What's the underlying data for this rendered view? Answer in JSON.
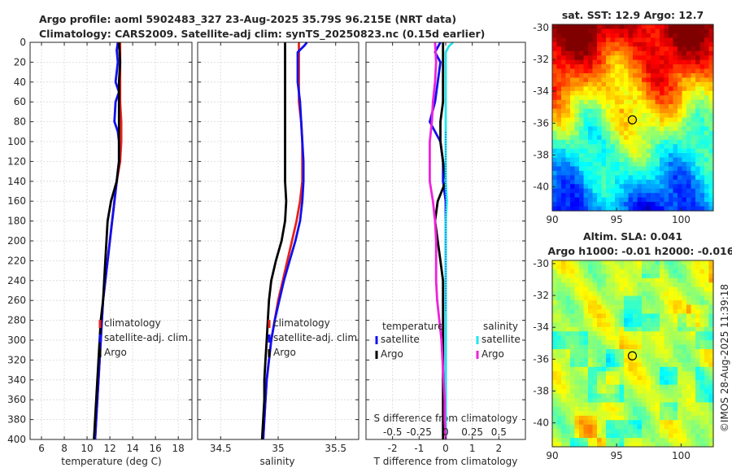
{
  "header": {
    "line1": "Argo profile: aoml 5902483_327 23-Aug-2025 35.79S 96.215E (NRT data)",
    "line2": "Climatology: CARS2009. Satellite-adj clim: synTS_20250823.nc (0.15d earlier)"
  },
  "credit": "©IMOS 28-Aug-2025 11:39:18",
  "colors": {
    "climatology": "#e8211a",
    "satellite": "#1010ee",
    "argo": "#000000",
    "cyan": "#22e5ea",
    "magenta": "#ee22dd"
  },
  "depth_axis": {
    "ticks": [
      0,
      20,
      40,
      60,
      80,
      100,
      120,
      140,
      160,
      180,
      200,
      220,
      240,
      260,
      280,
      300,
      320,
      340,
      360,
      380,
      400
    ],
    "range": [
      0,
      400
    ]
  },
  "chart_data": [
    {
      "type": "line",
      "id": "temp",
      "xlabel": "temperature (deg C)",
      "xlim": [
        5,
        19.2
      ],
      "xticks": [
        6,
        8,
        10,
        12,
        14,
        16,
        18
      ],
      "xticklabels": [
        "6",
        "8",
        "10",
        "12",
        "14",
        "16",
        "18"
      ],
      "legend": [
        "climatology",
        "satellite-adj. clim",
        "Argo"
      ],
      "series": [
        {
          "name": "climatology",
          "color": "#e8211a",
          "depth": [
            0,
            20,
            40,
            60,
            80,
            100,
            120,
            140,
            160,
            180,
            200,
            220,
            240,
            260,
            280,
            300,
            320,
            340,
            360,
            380,
            400
          ],
          "values": [
            12.9,
            12.9,
            12.9,
            12.9,
            13.0,
            13.0,
            12.9,
            12.6,
            12.4,
            12.2,
            12.0,
            11.8,
            11.6,
            11.4,
            11.3,
            11.2,
            11.1,
            11.0,
            10.9,
            10.8,
            10.7
          ]
        },
        {
          "name": "satellite-adj. clim",
          "color": "#1010ee",
          "depth": [
            0,
            8,
            20,
            40,
            50,
            60,
            80,
            90,
            100,
            120,
            140,
            160,
            180,
            200,
            220,
            240,
            260,
            280,
            300,
            320,
            340,
            360,
            380,
            400
          ],
          "values": [
            12.7,
            12.6,
            12.7,
            12.5,
            12.8,
            12.5,
            12.4,
            12.7,
            12.8,
            12.8,
            12.6,
            12.4,
            12.2,
            12.0,
            11.8,
            11.6,
            11.4,
            11.3,
            11.2,
            11.1,
            11.0,
            10.9,
            10.8,
            10.7
          ]
        },
        {
          "name": "Argo",
          "color": "#000000",
          "depth": [
            0,
            20,
            40,
            60,
            80,
            100,
            120,
            140,
            160,
            180,
            200,
            220,
            240,
            260,
            280,
            300,
            320,
            340,
            360,
            380,
            400
          ],
          "values": [
            12.8,
            12.9,
            12.8,
            12.8,
            12.8,
            12.8,
            12.8,
            12.6,
            12.1,
            11.8,
            11.7,
            11.6,
            11.5,
            11.4,
            11.2,
            11.1,
            11.0,
            10.9,
            10.8,
            10.7,
            10.6
          ]
        }
      ]
    },
    {
      "type": "line",
      "id": "salt",
      "xlabel": "salinity",
      "xlim": [
        34.3,
        35.7
      ],
      "xticks": [
        34.5,
        35,
        35.5
      ],
      "xticklabels": [
        "34.5",
        "35",
        "35.5"
      ],
      "legend": [
        "climatology",
        "satellite-adj. clim",
        "Argo"
      ],
      "series": [
        {
          "name": "climatology",
          "color": "#e8211a",
          "depth": [
            0,
            60,
            80,
            100,
            120,
            140,
            160,
            180,
            200,
            220,
            240,
            260,
            280,
            300,
            320,
            340,
            360,
            380,
            400
          ],
          "values": [
            35.18,
            35.18,
            35.2,
            35.21,
            35.21,
            35.21,
            35.19,
            35.16,
            35.12,
            35.08,
            35.04,
            35.0,
            34.97,
            34.94,
            34.92,
            34.9,
            34.89,
            34.88,
            34.87
          ]
        },
        {
          "name": "satellite-adj. clim",
          "color": "#1010ee",
          "depth": [
            0,
            3,
            10,
            20,
            40,
            60,
            80,
            100,
            120,
            140,
            160,
            180,
            200,
            220,
            240,
            260,
            280,
            300,
            320,
            340,
            360,
            380,
            400
          ],
          "values": [
            35.25,
            35.23,
            35.17,
            35.17,
            35.17,
            35.19,
            35.2,
            35.21,
            35.22,
            35.22,
            35.21,
            35.19,
            35.15,
            35.1,
            35.05,
            35.01,
            34.97,
            34.94,
            34.92,
            34.9,
            34.89,
            34.88,
            34.87
          ]
        },
        {
          "name": "Argo",
          "color": "#000000",
          "depth": [
            0,
            20,
            40,
            60,
            80,
            100,
            120,
            140,
            160,
            180,
            200,
            220,
            240,
            260,
            280,
            300,
            320,
            340,
            360,
            380,
            400
          ],
          "values": [
            35.06,
            35.06,
            35.06,
            35.06,
            35.06,
            35.06,
            35.06,
            35.06,
            35.07,
            35.06,
            35.03,
            34.98,
            34.94,
            34.92,
            34.91,
            34.9,
            34.89,
            34.88,
            34.88,
            34.87,
            34.86
          ]
        }
      ]
    },
    {
      "type": "line",
      "id": "diff",
      "xlabel": "T difference from climatology",
      "xlim": [
        -3,
        3
      ],
      "xticks": [
        -2,
        -1,
        0,
        1,
        2
      ],
      "xticklabels": [
        "-2",
        "-1",
        "0",
        "1",
        "2"
      ],
      "top_label": "S difference from climatology",
      "top_ticks": [
        -0.5,
        -0.25,
        0,
        0.25,
        0.5
      ],
      "top_ticklabels": [
        "-0.5",
        "-0.25",
        "0",
        "0.25",
        "0.5"
      ],
      "s_scale": 0.25,
      "legend_t_title": "temperature",
      "legend_s_title": "salinity",
      "legend_t": [
        "satellite",
        "Argo"
      ],
      "legend_s": [
        "satellite",
        "Argo"
      ],
      "series": [
        {
          "name": "T satellite",
          "color": "#1010ee",
          "depth": [
            0,
            5,
            10,
            20,
            40,
            60,
            80,
            100,
            120,
            140,
            160,
            180,
            200,
            220,
            260,
            300,
            340,
            400
          ],
          "values": [
            -0.2,
            -0.3,
            -0.4,
            -0.2,
            -0.3,
            -0.4,
            -0.6,
            -0.2,
            -0.1,
            -0.1,
            0.0,
            0.0,
            0.0,
            0.0,
            0.0,
            0.0,
            0.0,
            0.0
          ]
        },
        {
          "name": "T Argo",
          "color": "#000000",
          "depth": [
            0,
            20,
            40,
            60,
            80,
            100,
            120,
            140,
            160,
            180,
            200,
            220,
            240,
            260,
            280,
            300,
            320,
            340,
            360,
            380,
            400
          ],
          "values": [
            -0.1,
            -0.1,
            -0.1,
            -0.1,
            -0.2,
            -0.2,
            -0.1,
            0.0,
            -0.3,
            -0.4,
            -0.3,
            -0.2,
            -0.1,
            -0.1,
            -0.1,
            -0.1,
            -0.1,
            -0.1,
            -0.1,
            -0.1,
            -0.1
          ]
        },
        {
          "name": "S satellite",
          "color": "#22e5ea",
          "depth": [
            0,
            4,
            10,
            20,
            40,
            60,
            80,
            100,
            120,
            140,
            160,
            180,
            200,
            220,
            240,
            260,
            280,
            300,
            340,
            400
          ],
          "values": [
            0.07,
            0.03,
            0.0,
            0.0,
            0.0,
            0.0,
            0.0,
            0.0,
            0.0,
            0.0,
            0.01,
            0.0,
            0.0,
            0.0,
            0.0,
            0.0,
            0.0,
            0.0,
            0.0,
            0.0
          ]
        },
        {
          "name": "S Argo",
          "color": "#ee22dd",
          "depth": [
            0,
            20,
            40,
            60,
            80,
            100,
            120,
            140,
            160,
            180,
            200,
            220,
            240,
            260,
            280,
            300,
            320,
            340,
            360,
            380,
            400
          ],
          "values": [
            -0.1,
            -0.09,
            -0.1,
            -0.12,
            -0.13,
            -0.15,
            -0.15,
            -0.15,
            -0.12,
            -0.1,
            -0.09,
            -0.09,
            -0.09,
            -0.08,
            -0.06,
            -0.04,
            -0.03,
            -0.02,
            -0.01,
            -0.01,
            0.0
          ]
        }
      ]
    },
    {
      "type": "heatmap",
      "id": "sst",
      "title": "sat. SST: 12.9 Argo: 12.7",
      "xlim": [
        90,
        102.5
      ],
      "ylim": [
        -41.5,
        -29.8
      ],
      "xticks": [
        90,
        95,
        100
      ],
      "xticklabels": [
        "90",
        "95",
        "100"
      ],
      "yticks": [
        -30,
        -32,
        -34,
        -36,
        -38,
        -40
      ],
      "yticklabels": [
        "-30",
        "-32",
        "-34",
        "-36",
        "-38",
        "-40"
      ],
      "marker": {
        "lon": 96.215,
        "lat": -35.79
      }
    },
    {
      "type": "heatmap",
      "id": "sla",
      "title": "Altim. SLA: 0.041",
      "subtitle": "Argo h1000: -0.01 h2000: -0.016",
      "xlim": [
        90,
        102.5
      ],
      "ylim": [
        -41.5,
        -29.8
      ],
      "xticks": [
        90,
        95,
        100
      ],
      "xticklabels": [
        "90",
        "95",
        "100"
      ],
      "yticks": [
        -30,
        -32,
        -34,
        -36,
        -38,
        -40
      ],
      "yticklabels": [
        "-30",
        "-32",
        "-34",
        "-36",
        "-38",
        "-40"
      ],
      "marker": {
        "lon": 96.215,
        "lat": -35.79
      }
    }
  ]
}
